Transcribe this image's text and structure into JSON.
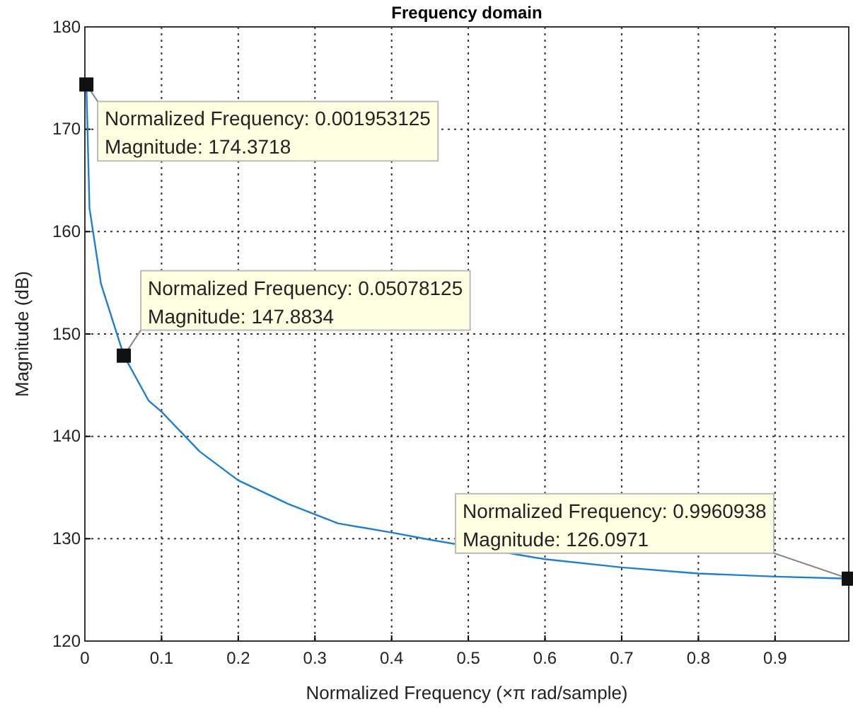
{
  "chart_data": {
    "type": "line",
    "title": "Frequency domain",
    "xlabel": "Normalized Frequency (×π rad/sample)",
    "ylabel": "Magnitude (dB)",
    "series": [
      {
        "color": "#1f7fcf",
        "x": [
          0.001953125,
          0.006,
          0.021,
          0.05078125,
          0.083,
          0.1,
          0.15,
          0.2,
          0.265,
          0.33,
          0.4,
          0.45,
          0.6,
          0.7,
          0.8,
          0.9,
          0.9960938
        ],
        "values": [
          174.4,
          162.3,
          154.9,
          147.9,
          143.5,
          142.4,
          138.5,
          135.7,
          133.4,
          131.5,
          130.6,
          129.9,
          128.0,
          127.2,
          126.6,
          126.3,
          126.1
        ]
      }
    ],
    "xlim": [
      0,
      0.9960938
    ],
    "xticks": [
      0,
      0.1,
      0.2,
      0.3,
      0.4,
      0.5,
      0.6,
      0.7,
      0.8,
      0.9
    ],
    "ylim": [
      120,
      180
    ],
    "yticks": [
      120,
      130,
      140,
      150,
      160,
      170,
      180
    ],
    "grid": true,
    "marker": "none",
    "line_style": "solid",
    "annotations": [
      {
        "text": "Normalized Frequency: 0.001953125\nMagnitude: 174.3718",
        "x": 0.001953125,
        "y": 174.3718
      },
      {
        "text": "Normalized Frequency: 0.05078125\nMagnitude: 147.8834",
        "x": 0.05078125,
        "y": 147.8834
      },
      {
        "text": "Normalized Frequency: 0.9960938\nMagnitude: 126.0971",
        "x": 0.9960938,
        "y": 126.0971
      }
    ]
  }
}
